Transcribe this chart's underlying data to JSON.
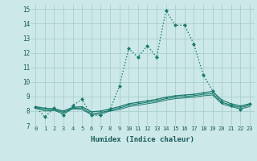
{
  "xlabel": "Humidex (Indice chaleur)",
  "ylabel": "",
  "xlim": [
    -0.5,
    23.5
  ],
  "ylim": [
    7,
    15.3
  ],
  "yticks": [
    7,
    8,
    9,
    10,
    11,
    12,
    13,
    14,
    15
  ],
  "xticks": [
    0,
    1,
    2,
    3,
    4,
    5,
    6,
    7,
    8,
    9,
    10,
    11,
    12,
    13,
    14,
    15,
    16,
    17,
    18,
    19,
    20,
    21,
    22,
    23
  ],
  "bg_color": "#cce8e8",
  "grid_color": "#aacece",
  "line_color": "#1a7a6e",
  "series": [
    {
      "x": [
        0,
        1,
        2,
        3,
        4,
        5,
        6,
        7,
        8,
        9,
        10,
        11,
        12,
        13,
        14,
        15,
        16,
        17,
        18,
        19,
        20,
        21,
        22,
        23
      ],
      "y": [
        8.3,
        7.6,
        8.2,
        7.7,
        8.4,
        8.8,
        7.7,
        7.7,
        8.1,
        9.7,
        12.3,
        11.7,
        12.5,
        11.7,
        14.9,
        13.9,
        13.9,
        12.6,
        10.5,
        9.4,
        8.6,
        8.4,
        8.1,
        8.5
      ],
      "style": ":",
      "marker": "D",
      "markersize": 2.5,
      "linewidth": 1.0,
      "zorder": 3
    },
    {
      "x": [
        0,
        1,
        2,
        3,
        4,
        5,
        6,
        7,
        8,
        9,
        10,
        11,
        12,
        13,
        14,
        15,
        16,
        17,
        18,
        19,
        20,
        21,
        22,
        23
      ],
      "y": [
        8.3,
        8.2,
        8.15,
        8.0,
        8.25,
        8.3,
        7.95,
        8.0,
        8.15,
        8.3,
        8.5,
        8.6,
        8.7,
        8.8,
        8.95,
        9.05,
        9.1,
        9.15,
        9.25,
        9.35,
        8.75,
        8.5,
        8.35,
        8.5
      ],
      "style": "-",
      "marker": "D",
      "markersize": 1.5,
      "linewidth": 0.9,
      "zorder": 2
    },
    {
      "x": [
        0,
        1,
        2,
        3,
        4,
        5,
        6,
        7,
        8,
        9,
        10,
        11,
        12,
        13,
        14,
        15,
        16,
        17,
        18,
        19,
        20,
        21,
        22,
        23
      ],
      "y": [
        8.25,
        8.1,
        8.1,
        7.9,
        8.2,
        8.2,
        7.8,
        7.9,
        8.05,
        8.2,
        8.4,
        8.5,
        8.6,
        8.7,
        8.85,
        8.95,
        9.0,
        9.05,
        9.15,
        9.2,
        8.6,
        8.4,
        8.25,
        8.4
      ],
      "style": "-",
      "marker": null,
      "markersize": 0,
      "linewidth": 0.8,
      "zorder": 2
    },
    {
      "x": [
        0,
        1,
        2,
        3,
        4,
        5,
        6,
        7,
        8,
        9,
        10,
        11,
        12,
        13,
        14,
        15,
        16,
        17,
        18,
        19,
        20,
        21,
        22,
        23
      ],
      "y": [
        8.2,
        8.0,
        8.05,
        7.8,
        8.15,
        8.1,
        7.75,
        7.8,
        8.0,
        8.1,
        8.3,
        8.4,
        8.5,
        8.6,
        8.75,
        8.85,
        8.9,
        8.95,
        9.05,
        9.1,
        8.5,
        8.3,
        8.15,
        8.3
      ],
      "style": "-",
      "marker": null,
      "markersize": 0,
      "linewidth": 0.7,
      "zorder": 2
    }
  ]
}
